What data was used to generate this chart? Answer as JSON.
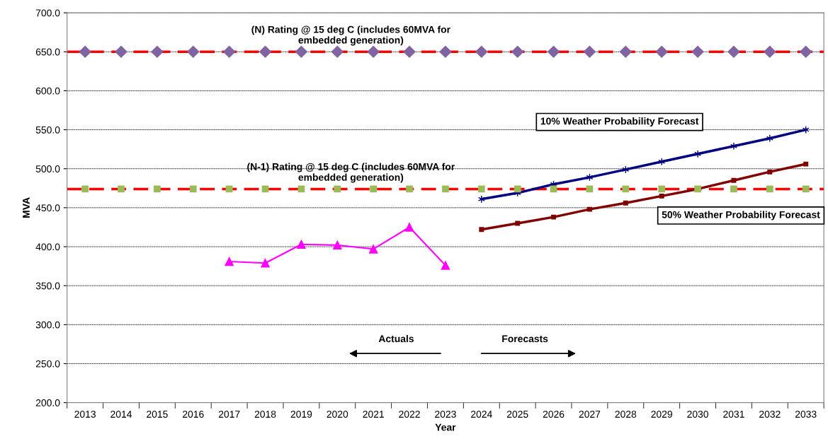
{
  "chart_data": {
    "type": "line",
    "categories": [
      "2013",
      "2014",
      "2015",
      "2016",
      "2017",
      "2018",
      "2019",
      "2020",
      "2021",
      "2022",
      "2023",
      "2024",
      "2025",
      "2026",
      "2027",
      "2028",
      "2029",
      "2030",
      "2031",
      "2032",
      "2033"
    ],
    "series": [
      {
        "type": "scatter",
        "color": "#8064a2",
        "marker": "diamond",
        "values": [
          650,
          650,
          650,
          650,
          650,
          650,
          650,
          650,
          650,
          650,
          650,
          650,
          650,
          650,
          650,
          650,
          650,
          650,
          650,
          650,
          650
        ]
      },
      {
        "type": "scatter",
        "color": "#9bbb59",
        "marker": "square",
        "values": [
          474,
          474,
          474,
          474,
          474,
          474,
          474,
          474,
          474,
          474,
          474,
          474,
          474,
          474,
          474,
          474,
          474,
          474,
          474,
          474,
          474
        ]
      },
      {
        "color": "#ff00ff",
        "marker": "triangle",
        "values": [
          null,
          null,
          null,
          null,
          381,
          379,
          403,
          402,
          397,
          425,
          376,
          null,
          null,
          null,
          null,
          null,
          null,
          null,
          null,
          null,
          null
        ]
      },
      {
        "name": "10% Weather Probability Forecast",
        "color": "#000080",
        "marker": "cross",
        "values": [
          null,
          null,
          null,
          null,
          null,
          null,
          null,
          null,
          null,
          null,
          null,
          461,
          469,
          480,
          489,
          499,
          509,
          519,
          529,
          539,
          550
        ]
      },
      {
        "name": "50% Weather Probability Forecast",
        "color": "#800000",
        "marker": "square",
        "values": [
          null,
          null,
          null,
          null,
          null,
          null,
          null,
          null,
          null,
          null,
          null,
          422,
          430,
          438,
          448,
          456,
          465,
          474,
          485,
          496,
          506
        ]
      }
    ],
    "ref_lines": [
      {
        "axis": "y",
        "value": 650,
        "label": "(N) Rating @ 15 deg C (includes 60MVA for\nembedded generation)",
        "color": "#ff0000",
        "line_style": "dashed"
      },
      {
        "axis": "y",
        "value": 474,
        "label": "(N-1) Rating @ 15 deg C (includes 60MVA for\nembedded generation)",
        "color": "#ff0000",
        "line_style": "dashed"
      }
    ],
    "annotations": [
      "Actuals",
      "Forecasts"
    ],
    "xlabel": "Year",
    "ylabel": "MVA",
    "ylim": [
      200,
      700
    ],
    "yticks": [
      {
        "value": 200,
        "label": "200.0"
      },
      {
        "value": 250,
        "label": "250.0"
      },
      {
        "value": 300,
        "label": "300.0"
      },
      {
        "value": 350,
        "label": "350.0"
      },
      {
        "value": 400,
        "label": "400.0"
      },
      {
        "value": 450,
        "label": "450.0"
      },
      {
        "value": 500,
        "label": "500.0"
      },
      {
        "value": 550,
        "label": "550.0"
      },
      {
        "value": 600,
        "label": "600.0"
      },
      {
        "value": 650,
        "label": "650.0"
      },
      {
        "value": 700,
        "label": "700.0"
      }
    ],
    "grid": "y"
  }
}
